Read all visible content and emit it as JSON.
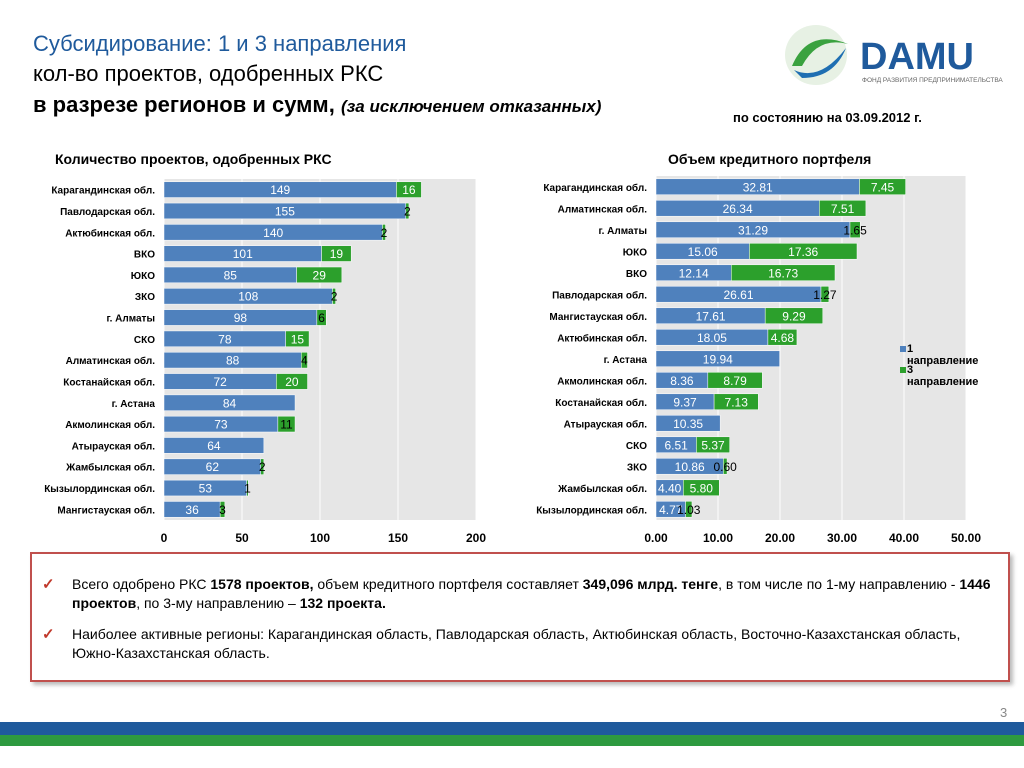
{
  "header": {
    "title_line1": "Субсидирование: 1 и 3 направления",
    "title_line2": "кол-во проектов, одобренных РКС",
    "title_line3_main": "в разрезе регионов и сумм,",
    "title_line3_note": "(за исключением отказанных)",
    "as_of": "по состоянию на 03.09.2012 г."
  },
  "logo": {
    "name": "DAMU",
    "tagline": "ФОНД РАЗВИТИЯ ПРЕДПРИНИМАТЕЛЬСТВА"
  },
  "colors": {
    "series1": "#4f81bd",
    "series2": "#2ca02c",
    "title_blue": "#1f5a9c",
    "border_red": "#c0504d"
  },
  "chart_data": [
    {
      "type": "bar",
      "orientation": "horizontal",
      "stacked": true,
      "title": "Количество проектов, одобренных РКС",
      "categories": [
        "Карагандинская обл.",
        "Павлодарская обл.",
        "Актюбинская обл.",
        "ВКО",
        "ЮКО",
        "ЗКО",
        "г. Алматы",
        "СКО",
        "Алматинская обл.",
        "Костанайская обл.",
        "г. Астана",
        "Акмолинская обл.",
        "Атырауская обл.",
        "Жамбылская обл.",
        "Кызылординская обл.",
        "Мангистауская обл."
      ],
      "series": [
        {
          "name": "1 направление",
          "values": [
            149,
            155,
            140,
            101,
            85,
            108,
            98,
            78,
            88,
            72,
            84,
            73,
            64,
            62,
            53,
            36
          ]
        },
        {
          "name": "3 направление",
          "values": [
            16,
            2,
            2,
            19,
            29,
            2,
            6,
            15,
            4,
            20,
            null,
            11,
            null,
            2,
            1,
            3
          ]
        }
      ],
      "xlim": [
        0,
        200
      ],
      "xticks": [
        "0",
        "50",
        "100",
        "150",
        "200"
      ],
      "xtick_values": [
        0,
        50,
        100,
        150,
        200
      ],
      "grid": true
    },
    {
      "type": "bar",
      "orientation": "horizontal",
      "stacked": true,
      "title": "Объем кредитного портфеля",
      "categories": [
        "Карагандинская обл.",
        "Алматинская обл.",
        "г. Алматы",
        "ЮКО",
        "ВКО",
        "Павлодарская обл.",
        "Мангистауская обл.",
        "Актюбинская обл.",
        "г. Астана",
        "Акмолинская обл.",
        "Костанайская обл.",
        "Атырауская обл.",
        "СКО",
        "ЗКО",
        "Жамбылская обл.",
        "Кызылординская обл."
      ],
      "series": [
        {
          "name": "1 направление",
          "values": [
            32.81,
            26.34,
            31.29,
            15.06,
            12.14,
            26.61,
            17.61,
            18.05,
            19.94,
            8.36,
            9.37,
            10.35,
            6.51,
            10.86,
            4.4,
            4.77
          ]
        },
        {
          "name": "3 направление",
          "values": [
            7.45,
            7.51,
            1.65,
            17.36,
            16.73,
            1.27,
            9.29,
            4.68,
            null,
            8.79,
            7.13,
            null,
            5.37,
            0.6,
            5.8,
            1.03
          ]
        }
      ],
      "xlim": [
        0,
        50
      ],
      "xticks": [
        "0.00",
        "10.00",
        "20.00",
        "30.00",
        "40.00",
        "50.00"
      ],
      "xtick_values": [
        0,
        10,
        20,
        30,
        40,
        50
      ],
      "grid": true,
      "legend": [
        "1 направление",
        "3 направление"
      ],
      "legend_position": "right"
    }
  ],
  "summary": {
    "b1_pre": "Всего одобрено РКС ",
    "b1_total": "1578 проектов,",
    "b1_mid": " объем кредитного портфеля составляет ",
    "b1_amount": "349,096 млрд. тенге",
    "b1_mid2": ", в том числе по 1-му направлению -  ",
    "b1_dir1": "1446 проектов",
    "b1_mid3": ", по 3-му направлению – ",
    "b1_dir3": "132 проекта.",
    "b2_text": "Наиболее активные регионы: Карагандинская область, Павлодарская область, Актюбинская область, Восточно-Казахстанская область, Южно-Казахстанская область.",
    "check_glyph": "✓"
  },
  "page_number": "3"
}
